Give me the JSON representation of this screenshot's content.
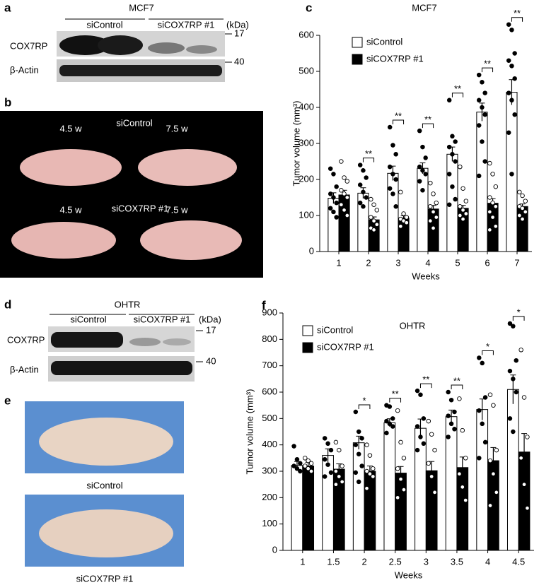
{
  "panel_a": {
    "label": "a",
    "title": "MCF7",
    "groups": [
      "siControl",
      "siCOX7RP #1"
    ],
    "unit": "(kDa)",
    "rows": [
      "COX7RP",
      "β-Actin"
    ],
    "markers": [
      17,
      40
    ]
  },
  "panel_b": {
    "label": "b",
    "top_group": "siControl",
    "bottom_group": "siCOX7RP #1",
    "time_labels": [
      "4.5 w",
      "7.5 w",
      "4.5 w",
      "7.5 w"
    ]
  },
  "panel_d": {
    "label": "d",
    "title": "OHTR",
    "groups": [
      "siControl",
      "siCOX7RP #1"
    ],
    "unit": "(kDa)",
    "rows": [
      "COX7RP",
      "β-Actin"
    ],
    "markers": [
      17,
      40
    ]
  },
  "panel_e": {
    "label": "e",
    "captions": [
      "siControl",
      "siCOX7RP #1"
    ]
  },
  "chart_data": [
    {
      "panel_label": "c",
      "type": "bar",
      "title": "MCF7",
      "y_label": "Tumor volume (mm³)",
      "x_label": "Weeks",
      "categories": [
        "1",
        "2",
        "3",
        "4",
        "5",
        "6",
        "7"
      ],
      "series": [
        {
          "name": "siControl",
          "color": "#ffffff",
          "point_fill": "#000000",
          "values": [
            148,
            162,
            217,
            231,
            270,
            387,
            442
          ],
          "errors": [
            15,
            15,
            20,
            15,
            20,
            25,
            35
          ],
          "points": [
            [
              230,
              215,
              180,
              160,
              150,
              135,
              120,
              110,
              95
            ],
            [
              240,
              225,
              205,
              185,
              165,
              150,
              135,
              125
            ],
            [
              345,
              295,
              270,
              235,
              215,
              200,
              175,
              160,
              125
            ],
            [
              335,
              290,
              260,
              235,
              225,
              215,
              195,
              170
            ],
            [
              420,
              320,
              305,
              290,
              270,
              250,
              215,
              180,
              145,
              130
            ],
            [
              490,
              470,
              440,
              420,
              400,
              380,
              350,
              305,
              250,
              210
            ],
            [
              630,
              615,
              550,
              530,
              515,
              480,
              440,
              420,
              380,
              330,
              215
            ]
          ]
        },
        {
          "name": "siCOX7RP #1",
          "color": "#000000",
          "point_fill": "#ffffff",
          "values": [
            157,
            88,
            93,
            118,
            120,
            134,
            125
          ],
          "errors": [
            13,
            8,
            6,
            10,
            8,
            13,
            7
          ],
          "points": [
            [
              250,
              205,
              195,
              170,
              160,
              150,
              130,
              115,
              100
            ],
            [
              145,
              130,
              115,
              95,
              85,
              75,
              65,
              60
            ],
            [
              165,
              105,
              95,
              90,
              85,
              80,
              70
            ],
            [
              190,
              160,
              135,
              125,
              110,
              95,
              85,
              65
            ],
            [
              235,
              175,
              140,
              125,
              115,
              105,
              100,
              90
            ],
            [
              245,
              215,
              180,
              150,
              135,
              125,
              110,
              95,
              70,
              60
            ],
            [
              165,
              155,
              140,
              125,
              120,
              110,
              100,
              90
            ]
          ]
        }
      ],
      "significance": [
        null,
        "**",
        "**",
        "**",
        "**",
        "**",
        "**"
      ],
      "ylim": [
        0,
        600
      ],
      "yticks": [
        0,
        100,
        200,
        300,
        400,
        500,
        600
      ],
      "legend": "upper left"
    },
    {
      "panel_label": "f",
      "type": "bar",
      "title": "OHTR",
      "y_label": "Tumor volume (mm³)",
      "x_label": "Weeks",
      "categories": [
        "1",
        "1.5",
        "2",
        "2.5",
        "3",
        "3.5",
        "4",
        "4.5"
      ],
      "series": [
        {
          "name": "siControl",
          "color": "#ffffff",
          "point_fill": "#000000",
          "values": [
            322,
            360,
            408,
            484,
            463,
            507,
            534,
            610
          ],
          "errors": [
            15,
            25,
            25,
            15,
            35,
            25,
            40,
            55
          ],
          "points": [
            [
              395,
              345,
              330,
              320,
              310,
              300
            ],
            [
              425,
              405,
              380,
              345,
              325,
              295,
              280
            ],
            [
              525,
              450,
              425,
              400,
              365,
              320,
              295,
              260
            ],
            [
              550,
              545,
              500,
              490,
              480,
              470,
              445
            ],
            [
              605,
              590,
              500,
              470,
              430,
              405,
              380
            ],
            [
              600,
              570,
              525,
              510,
              480,
              460,
              430
            ],
            [
              730,
              710,
              580,
              530,
              480,
              410,
              350
            ],
            [
              860,
              850,
              720,
              680,
              650,
              600,
              500,
              450
            ]
          ]
        },
        {
          "name": "siCOX7RP #1",
          "color": "#000000",
          "point_fill": "#ffffff",
          "values": [
            320,
            308,
            300,
            293,
            302,
            314,
            340,
            373
          ],
          "errors": [
            14,
            20,
            20,
            25,
            35,
            40,
            50,
            70
          ],
          "points": [
            [
              350,
              340,
              330,
              320,
              310,
              300
            ],
            [
              410,
              380,
              320,
              300,
              280,
              260,
              250
            ],
            [
              400,
              360,
              310,
              300,
              290,
              280,
              235
            ],
            [
              530,
              410,
              350,
              310,
              270,
              230,
              200
            ],
            [
              490,
              440,
              380,
              330,
              280,
              220
            ],
            [
              575,
              455,
              350,
              290,
              240,
              190
            ],
            [
              590,
              550,
              380,
              340,
              290,
              220,
              170
            ],
            [
              760,
              580,
              430,
              350,
              250,
              160
            ]
          ]
        }
      ],
      "significance": [
        null,
        null,
        "*",
        "**",
        "**",
        "**",
        "*",
        "*"
      ],
      "ylim": [
        0,
        900
      ],
      "yticks": [
        0,
        100,
        200,
        300,
        400,
        500,
        600,
        700,
        800,
        900
      ],
      "legend": "upper left"
    }
  ]
}
